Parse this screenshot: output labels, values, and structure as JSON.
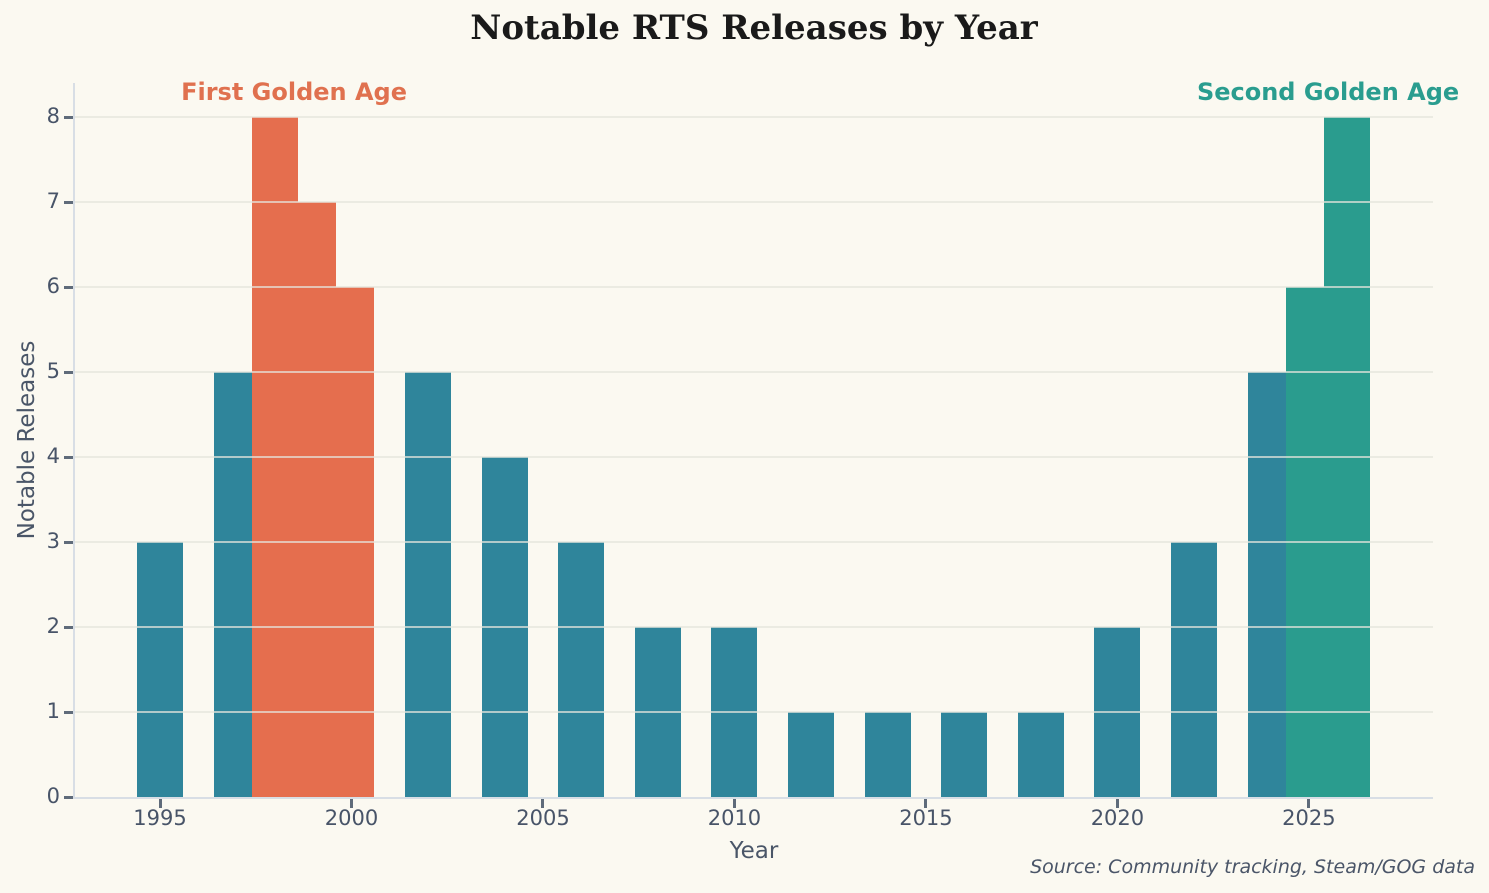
{
  "title": "Notable RTS Releases by Year",
  "annotations": [
    {
      "text": "First Golden Age",
      "color": "#E0714F",
      "year_center": 1998.5
    },
    {
      "text": "Second Golden Age",
      "color": "#2A9D8F",
      "year_center": 2025.5
    }
  ],
  "chart_data": {
    "type": "bar",
    "title": "Notable RTS Releases by Year",
    "xlabel": "Year",
    "ylabel": "Notable Releases",
    "x": [
      1995,
      1997,
      1998,
      1999,
      2000,
      2002,
      2004,
      2006,
      2008,
      2010,
      2012,
      2014,
      2016,
      2018,
      2020,
      2022,
      2024,
      2025,
      2026
    ],
    "values": [
      3,
      5,
      8,
      7,
      6,
      5,
      4,
      3,
      2,
      2,
      1,
      1,
      1,
      1,
      2,
      3,
      5,
      6,
      8
    ],
    "bar_colors": [
      "#2F859B",
      "#2F859B",
      "#E56E4E",
      "#E56E4E",
      "#E56E4E",
      "#2F859B",
      "#2F859B",
      "#2F859B",
      "#2F859B",
      "#2F859B",
      "#2F859B",
      "#2F859B",
      "#2F859B",
      "#2F859B",
      "#2F859B",
      "#2F859B",
      "#2F859B",
      "#2A9C8E",
      "#2A9C8E"
    ],
    "bar_width_years": 1.2,
    "xlim": [
      1992.78,
      2028.24
    ],
    "ylim": [
      0,
      8.4
    ],
    "xticks": [
      1995,
      2000,
      2005,
      2010,
      2015,
      2020,
      2025
    ],
    "yticks": [
      0,
      1,
      2,
      3,
      4,
      5,
      6,
      7,
      8
    ],
    "grid": "horizontal gridlines drawn above bars",
    "legend": "none",
    "colors": {
      "default_bar": "#2F859B",
      "first_golden_age": "#E56E4E",
      "second_golden_age": "#2A9C8E",
      "background": "#FBF9F1"
    }
  },
  "source_note": "Source: Community tracking, Steam/GOG data"
}
